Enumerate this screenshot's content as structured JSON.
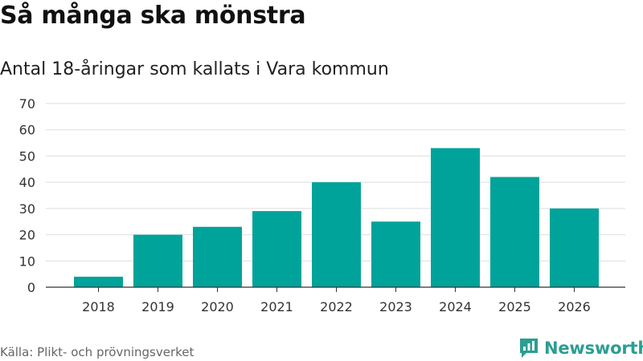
{
  "title": "Så många ska mönstra",
  "subtitle": "Antal 18-åringar som kallats i Vara kommun",
  "source": "Källa: Plikt- och prövningsverket",
  "brand": {
    "name": "Newsworthy",
    "color": "#2b9e92",
    "icon": "newsworthy-bar-icon"
  },
  "chart_data": {
    "type": "bar",
    "title": "Antal 18-åringar som kallats i Vara kommun",
    "xlabel": "",
    "ylabel": "",
    "categories": [
      "2018",
      "2019",
      "2020",
      "2021",
      "2022",
      "2023",
      "2024",
      "2025",
      "2026"
    ],
    "values": [
      4,
      20,
      23,
      29,
      40,
      25,
      53,
      42,
      30
    ],
    "ylim": [
      0,
      70
    ],
    "yticks": [
      0,
      10,
      20,
      30,
      40,
      50,
      60,
      70
    ],
    "grid": true,
    "bar_color": "#00a39a"
  }
}
